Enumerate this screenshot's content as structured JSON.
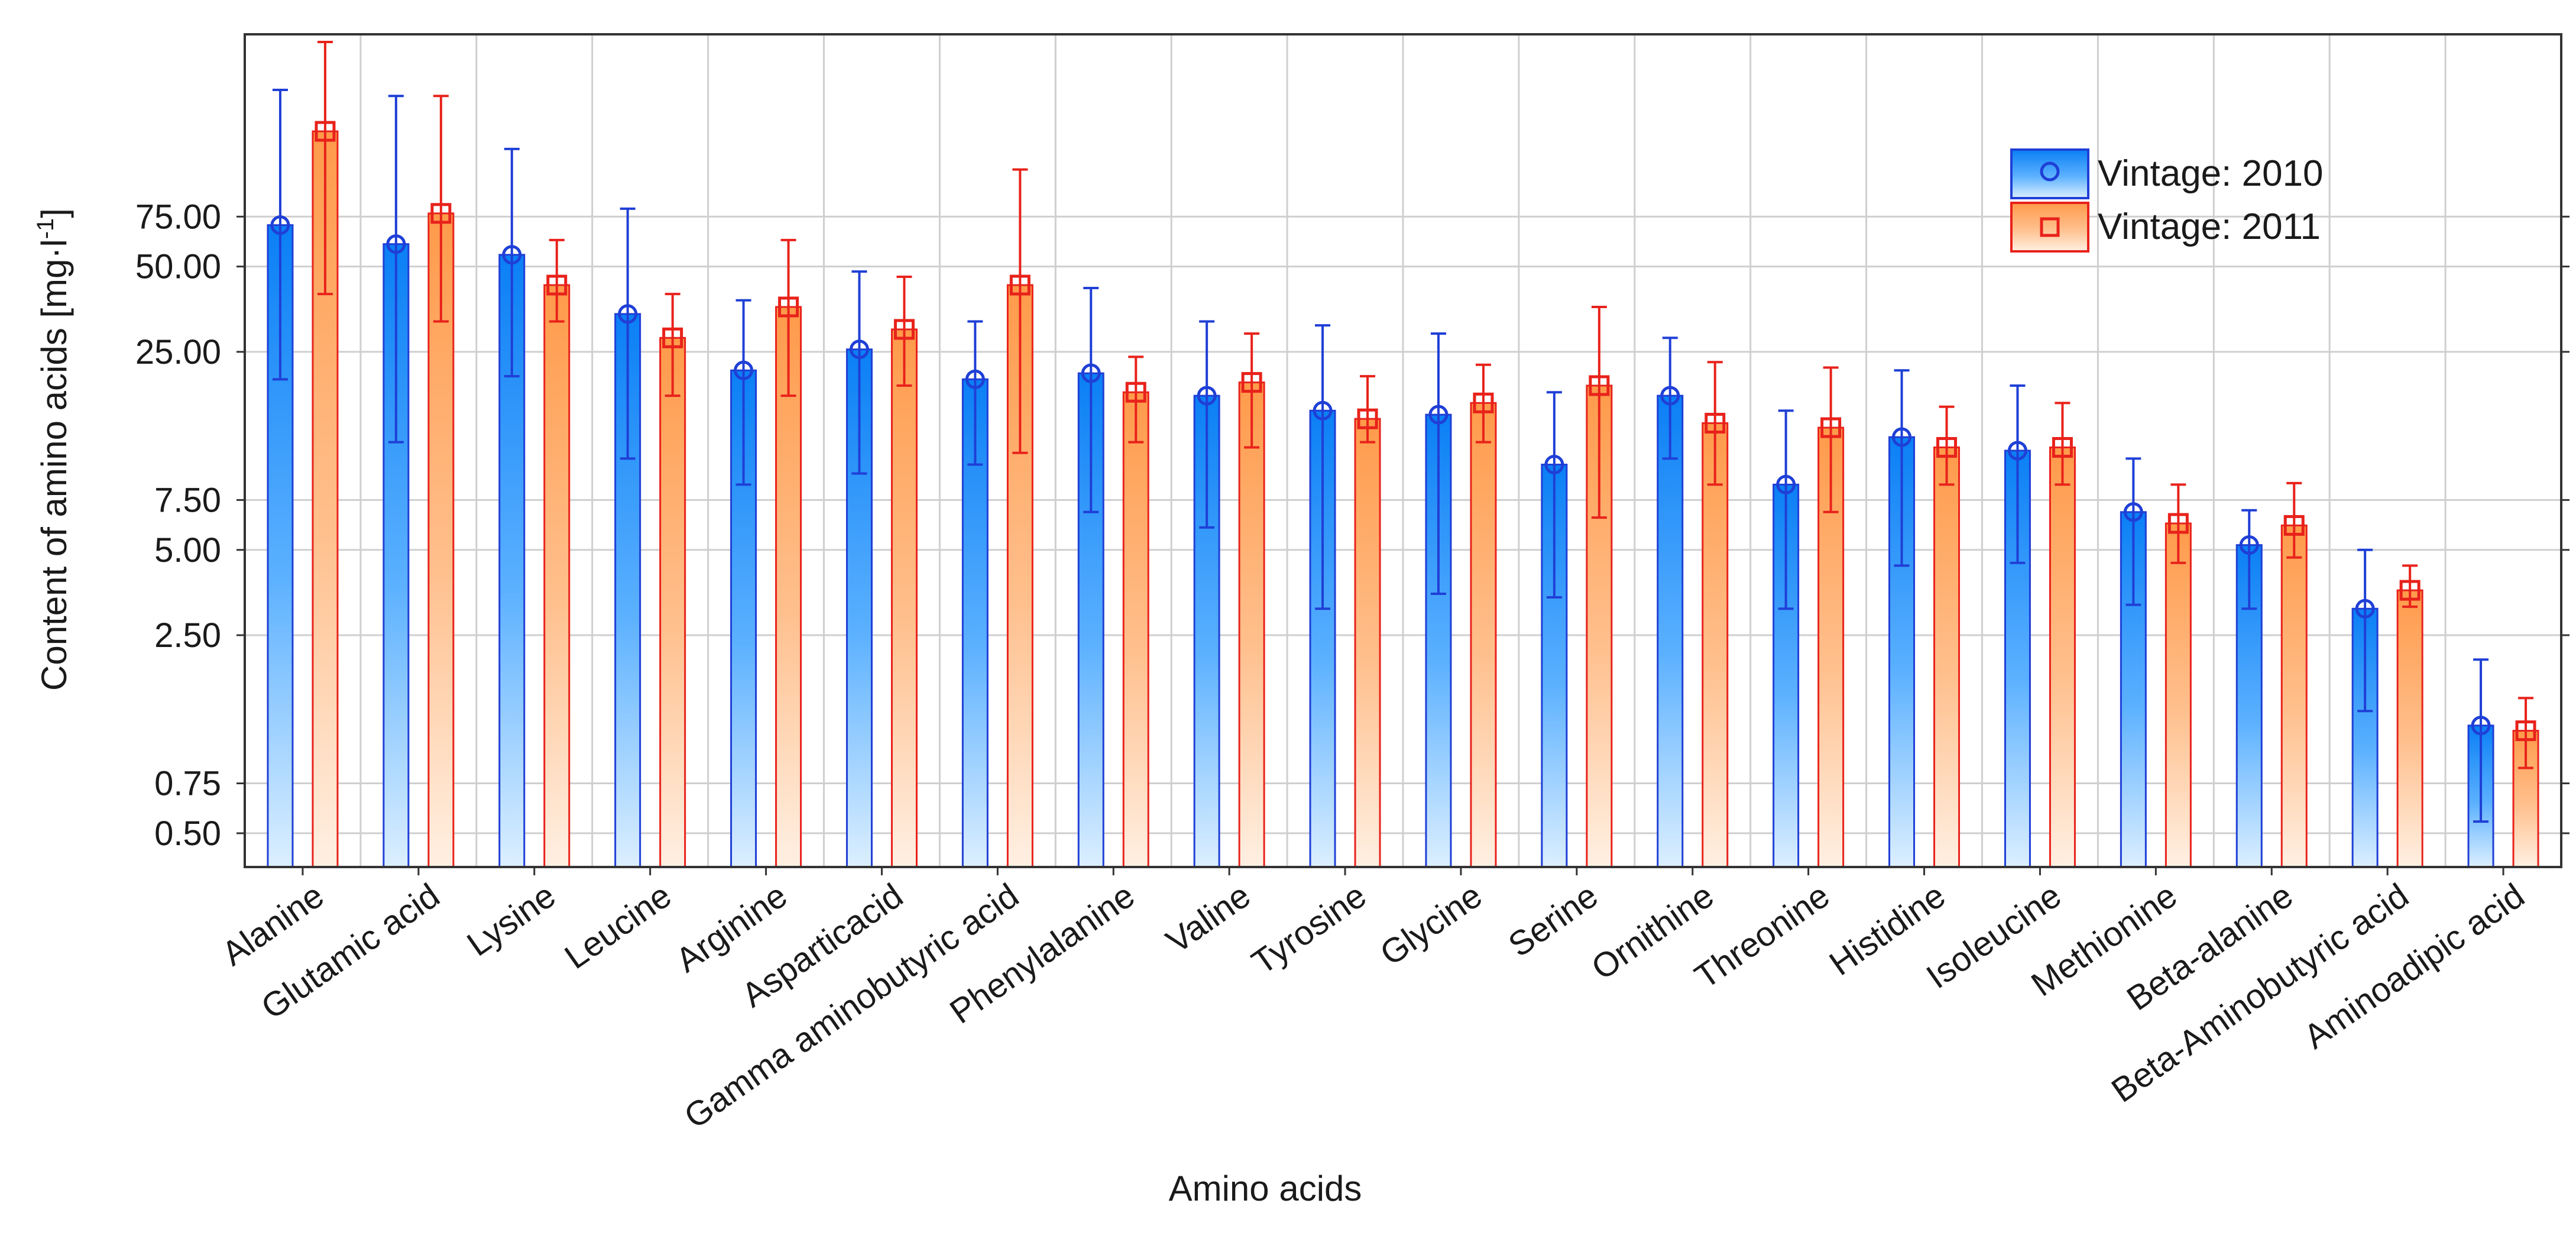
{
  "chart_data": {
    "type": "bar",
    "title": "",
    "xlabel": "Amino acids",
    "ylabel": "Content of amino acids [mg·l",
    "ylabel_superscript": "-1",
    "ylabel_close": "]",
    "y_scale": "log",
    "ylim": [
      0.38,
      330
    ],
    "y_ticks": [
      0.5,
      0.75,
      2.5,
      5.0,
      7.5,
      25.0,
      50.0,
      75.0
    ],
    "y_tick_labels": [
      "0.50",
      "0.75",
      "2.50",
      "5.00",
      "7.50",
      "25.00",
      "50.00",
      "75.00"
    ],
    "grid": true,
    "legend_position": "top-right",
    "categories": [
      "Alanine",
      "Glutamic acid",
      "Lysine",
      "Leucine",
      "Arginine",
      "Asparticacid",
      "Gamma aminobutyric acid",
      "Phenylalanine",
      "Valine",
      "Tyrosine",
      "Glycine",
      "Serine",
      "Ornithine",
      "Threonine",
      "Histidine",
      "Isoleucine",
      "Methionine",
      "Beta-alanine",
      "Beta-Aminobutyric acid",
      "Aminoadipic acid"
    ],
    "series": [
      {
        "name": "Vintage: 2010",
        "color": "#1a8cff",
        "edge": "#1f3fd6",
        "marker": "circle",
        "values": [
          70,
          60,
          55,
          34,
          21.5,
          25.5,
          20,
          21,
          17.5,
          15.5,
          15,
          10,
          17.5,
          8.5,
          12.5,
          11.2,
          6.8,
          5.2,
          3.1,
          1.2
        ],
        "err_low": [
          20,
          12,
          20.5,
          10.5,
          8.5,
          9.3,
          10,
          6.8,
          6,
          3.1,
          3.5,
          3.4,
          10.5,
          3.1,
          4.4,
          4.5,
          3.2,
          3.1,
          1.35,
          0.55
        ],
        "err_high": [
          210,
          200,
          130,
          80,
          38,
          48,
          32,
          42,
          32,
          31,
          29,
          18,
          28,
          15.5,
          21.5,
          19,
          10.5,
          6.9,
          5.0,
          2.05
        ]
      },
      {
        "name": "Vintage: 2011",
        "color": "#ffab6b",
        "edge": "#e8221b",
        "marker": "square",
        "values": [
          150,
          77,
          43,
          28,
          36,
          30,
          43,
          18,
          19.5,
          14.5,
          16.5,
          19,
          14,
          13.5,
          11.5,
          11.5,
          6.2,
          6.1,
          3.6,
          1.15
        ],
        "err_low": [
          40,
          32,
          32,
          17.5,
          17.5,
          19,
          11,
          12,
          11.5,
          12,
          12,
          6.5,
          8.5,
          6.8,
          8.5,
          8.5,
          4.5,
          4.7,
          3.15,
          0.85
        ],
        "err_high": [
          310,
          200,
          62,
          40,
          62,
          46,
          110,
          24,
          29,
          20.5,
          22.5,
          36,
          23,
          22,
          16,
          16.5,
          8.5,
          8.6,
          4.4,
          1.5
        ]
      }
    ]
  }
}
